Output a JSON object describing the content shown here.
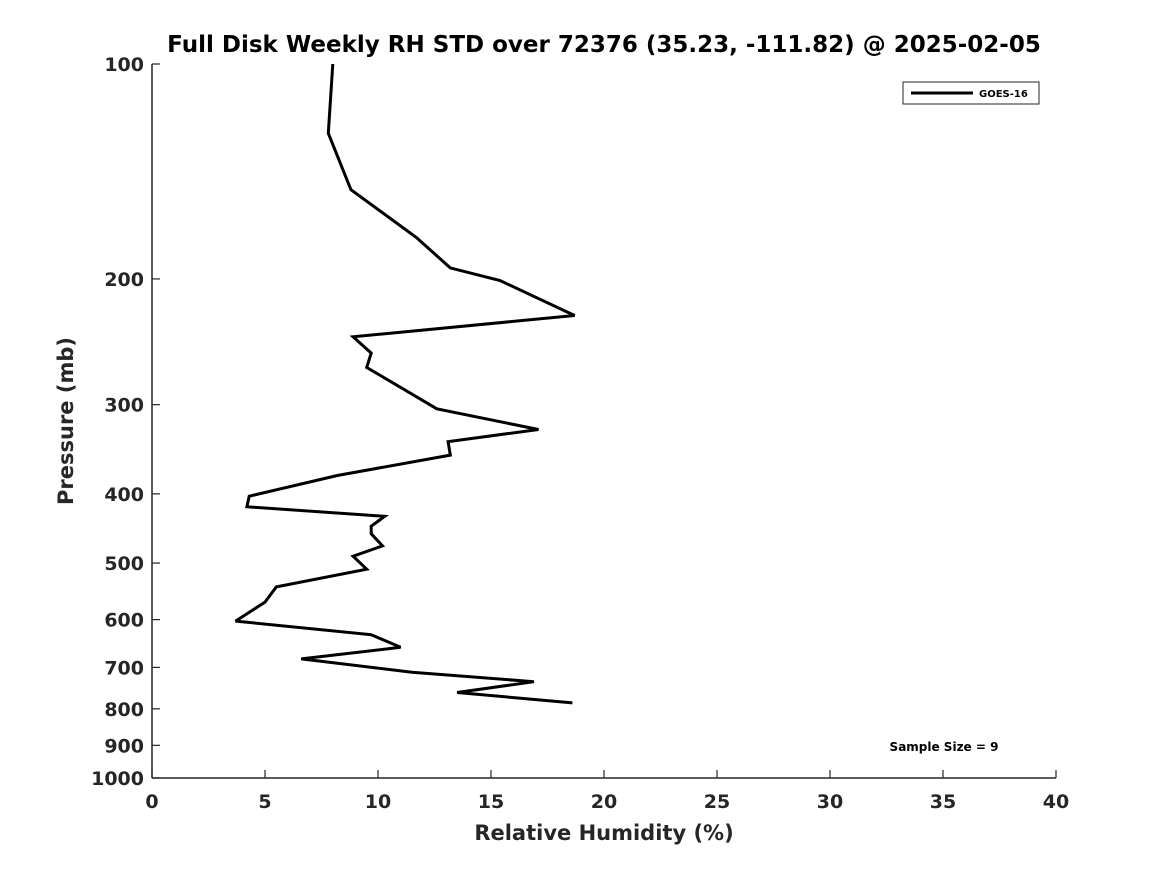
{
  "chart_data": {
    "type": "line",
    "title": "Full Disk Weekly RH STD over 72376 (35.23, -111.82) @ 2025-02-05",
    "xlabel": "Relative Humidity (%)",
    "ylabel": "Pressure (mb)",
    "xlim": [
      0,
      40
    ],
    "ylim": [
      100,
      1000
    ],
    "y_scale": "log",
    "y_reversed": true,
    "x_ticks": [
      "0",
      "5",
      "10",
      "15",
      "20",
      "25",
      "30",
      "35",
      "40"
    ],
    "y_ticks": [
      "100",
      "200",
      "300",
      "400",
      "500",
      "600",
      "700",
      "800",
      "900",
      "1000"
    ],
    "grid": false,
    "legend_position": "top-right",
    "series": [
      {
        "name": "GOES-16",
        "color": "#000000",
        "x": [
          8.0,
          7.8,
          8.8,
          11.7,
          13.2,
          15.4,
          18.7,
          8.9,
          9.7,
          9.5,
          12.6,
          17.1,
          13.1,
          13.2,
          8.2,
          4.3,
          4.2,
          10.3,
          9.7,
          9.7,
          10.2,
          8.9,
          9.5,
          5.5,
          5.0,
          3.7,
          9.7,
          11.0,
          6.6,
          11.5,
          16.9,
          13.5,
          18.6
        ],
        "y": [
          100,
          125,
          150,
          175,
          193,
          201,
          225,
          241,
          254,
          266,
          304,
          325,
          338,
          353,
          377,
          403,
          417,
          430,
          444,
          455,
          473,
          489,
          510,
          540,
          567,
          603,
          630,
          656,
          681,
          711,
          733,
          759,
          785
        ]
      }
    ],
    "annotations": [
      "Sample Size = 9"
    ]
  }
}
